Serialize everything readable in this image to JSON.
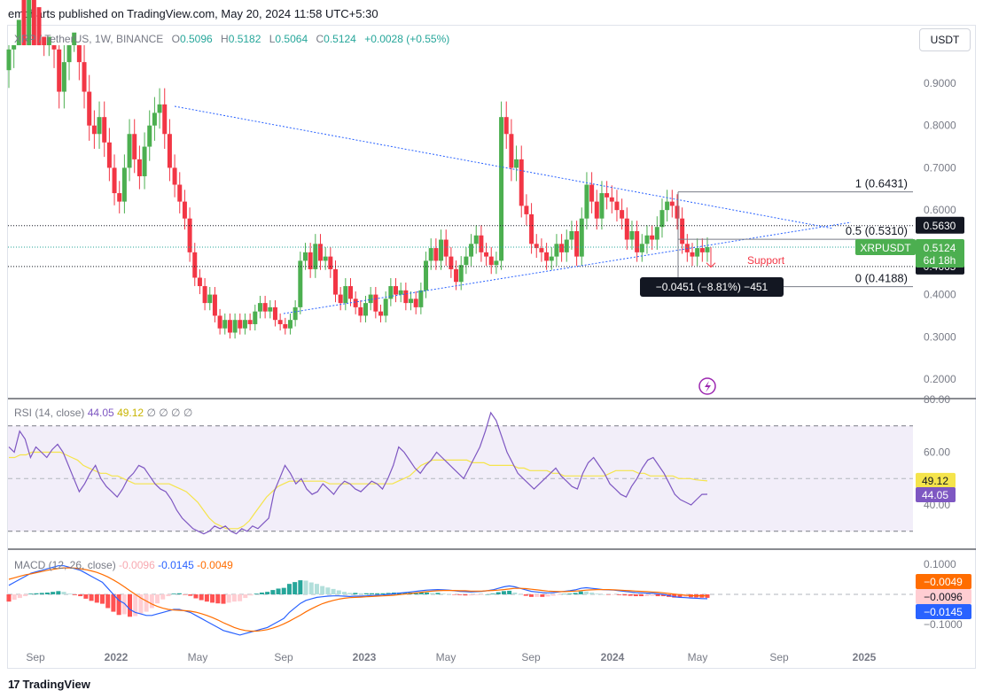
{
  "header": {
    "published": "emcharts published on TradingView.com, May 20, 2024 11:58 UTC+5:30"
  },
  "legend": {
    "symbol": "XRP / TetherUS, 1W, BINANCE",
    "open_label": "O",
    "open": "0.5096",
    "high_label": "H",
    "high": "0.5182",
    "low_label": "L",
    "low": "0.5064",
    "close_label": "C",
    "close": "0.5124",
    "change": "+0.0028 (+0.55%)"
  },
  "currency_button": "USDT",
  "footer": {
    "logo_text": "TradingView",
    "logo_mark": "17"
  },
  "colors": {
    "up": "#26a69a",
    "up_bright": "#4caf50",
    "down": "#f23645",
    "rsi": "#7e57c2",
    "rsi_ma": "#f5e44b",
    "macd": "#2962ff",
    "signal": "#ff6d00",
    "trend": "#2962ff",
    "fib": "#787b86"
  },
  "chart_data": [
    {
      "type": "candlestick",
      "title": "XRP / TetherUS, 1W, BINANCE",
      "ylim": [
        0.18,
        1.0
      ],
      "yticks": [
        "0.9000",
        "0.8000",
        "0.7000",
        "0.6000",
        "0.5000",
        "0.4000",
        "0.3000",
        "0.2000"
      ],
      "xticks": [
        "Sep",
        "2022",
        "May",
        "Sep",
        "2023",
        "May",
        "Sep",
        "2024",
        "May",
        "Sep",
        "2025"
      ],
      "close_series": [
        0.98,
        1.05,
        1.15,
        1.1,
        1.2,
        1.12,
        1.08,
        1.01,
        1.05,
        0.98,
        0.88,
        0.95,
        1.02,
        1.05,
        0.95,
        0.88,
        0.8,
        0.78,
        0.82,
        0.76,
        0.7,
        0.64,
        0.62,
        0.7,
        0.78,
        0.72,
        0.68,
        0.75,
        0.8,
        0.83,
        0.85,
        0.78,
        0.7,
        0.66,
        0.62,
        0.58,
        0.5,
        0.44,
        0.42,
        0.38,
        0.4,
        0.35,
        0.32,
        0.34,
        0.31,
        0.34,
        0.32,
        0.34,
        0.33,
        0.36,
        0.38,
        0.36,
        0.37,
        0.34,
        0.33,
        0.32,
        0.34,
        0.37,
        0.48,
        0.5,
        0.46,
        0.52,
        0.48,
        0.49,
        0.46,
        0.4,
        0.38,
        0.42,
        0.39,
        0.37,
        0.35,
        0.38,
        0.4,
        0.36,
        0.35,
        0.39,
        0.42,
        0.4,
        0.41,
        0.38,
        0.39,
        0.37,
        0.41,
        0.48,
        0.51,
        0.48,
        0.53,
        0.49,
        0.46,
        0.43,
        0.47,
        0.49,
        0.52,
        0.54,
        0.5,
        0.49,
        0.47,
        0.48,
        0.82,
        0.78,
        0.7,
        0.72,
        0.61,
        0.59,
        0.52,
        0.51,
        0.5,
        0.48,
        0.49,
        0.52,
        0.5,
        0.53,
        0.55,
        0.49,
        0.58,
        0.66,
        0.62,
        0.58,
        0.64,
        0.63,
        0.62,
        0.6,
        0.58,
        0.53,
        0.55,
        0.5,
        0.52,
        0.54,
        0.53,
        0.56,
        0.6,
        0.62,
        0.61,
        0.58,
        0.52,
        0.5,
        0.49,
        0.51,
        0.5,
        0.5124
      ],
      "price_range": {
        "high": "1 (0.6431)",
        "mid": "0.5 (0.5310)",
        "low": "0 (0.4188)"
      },
      "levels": {
        "resistance": "0.5630",
        "support": "0.4665"
      },
      "last_price_label": {
        "symbol": "XRPUSDT",
        "price": "0.5124",
        "countdown": "6d 18h"
      },
      "measure_label": "−0.0451 (−8.81%) −451",
      "annotation": "Support"
    },
    {
      "type": "line",
      "title": "RSI (14, close)",
      "series": [
        {
          "name": "RSI",
          "last": "44.05",
          "values": [
            62,
            60,
            68,
            65,
            58,
            62,
            60,
            58,
            61,
            63,
            60,
            55,
            50,
            45,
            48,
            52,
            55,
            50,
            47,
            45,
            43,
            46,
            50,
            52,
            55,
            54,
            51,
            48,
            46,
            45,
            42,
            38,
            35,
            33,
            31,
            30,
            29,
            30,
            32,
            31,
            32,
            30,
            29,
            31,
            30,
            32,
            31,
            33,
            35,
            45,
            50,
            55,
            52,
            48,
            50,
            46,
            44,
            45,
            48,
            46,
            44,
            47,
            49,
            48,
            46,
            45,
            47,
            49,
            48,
            46,
            50,
            55,
            62,
            60,
            57,
            54,
            52,
            55,
            57,
            60,
            58,
            56,
            54,
            52,
            50,
            54,
            58,
            62,
            68,
            75,
            72,
            66,
            60,
            56,
            52,
            50,
            48,
            46,
            48,
            50,
            52,
            54,
            51,
            49,
            47,
            46,
            52,
            56,
            58,
            55,
            52,
            48,
            46,
            44,
            43,
            47,
            50,
            54,
            57,
            58,
            55,
            52,
            48,
            44,
            42,
            41,
            40,
            42,
            44,
            44.05
          ]
        },
        {
          "name": "RSI-based MA",
          "last": "49.12",
          "values": [
            58,
            58,
            59,
            59,
            60,
            60,
            60,
            60,
            60,
            60,
            59,
            58,
            57,
            55,
            54,
            53,
            52,
            52,
            51,
            51,
            50,
            49,
            48,
            48,
            48,
            48,
            48,
            48,
            48,
            47,
            46,
            45,
            43,
            41,
            38,
            35,
            33,
            32,
            31,
            31,
            31,
            32,
            34,
            37,
            40,
            43,
            45,
            47,
            48,
            49,
            49,
            49,
            49,
            49,
            49,
            49,
            48,
            48,
            48,
            48,
            48,
            48,
            48,
            48,
            48,
            48,
            48,
            48,
            49,
            50,
            51,
            53,
            55,
            56,
            57,
            57,
            57,
            57,
            57,
            57,
            57,
            56,
            56,
            56,
            55,
            55,
            55,
            55,
            55,
            54,
            54,
            53,
            53,
            53,
            53,
            52,
            52,
            51,
            51,
            51,
            51,
            51,
            51,
            51,
            51,
            52,
            53,
            53,
            53,
            53,
            52,
            52,
            51,
            51,
            51,
            51,
            51,
            50,
            50,
            50,
            49.5,
            49.3,
            49.12
          ]
        }
      ],
      "yticks": [
        "80.00",
        "60.00",
        "40.00"
      ],
      "value_labels": {
        "ma": "49.12",
        "rsi": "44.05"
      },
      "legend_extra": "∅ ∅ ∅ ∅"
    },
    {
      "type": "bar",
      "title": "MACD (12, 26, close)",
      "series": [
        {
          "name": "Histogram",
          "last": "-0.0096"
        },
        {
          "name": "MACD",
          "last": "-0.0145"
        },
        {
          "name": "Signal",
          "last": "-0.0049"
        }
      ],
      "macd_values": [
        0.03,
        0.04,
        0.05,
        0.06,
        0.07,
        0.075,
        0.08,
        0.085,
        0.09,
        0.095,
        0.095,
        0.09,
        0.085,
        0.08,
        0.07,
        0.06,
        0.05,
        0.04,
        0.02,
        0.0,
        -0.02,
        -0.03,
        -0.05,
        -0.06,
        -0.065,
        -0.07,
        -0.07,
        -0.065,
        -0.06,
        -0.055,
        -0.05,
        -0.05,
        -0.055,
        -0.06,
        -0.07,
        -0.08,
        -0.09,
        -0.1,
        -0.11,
        -0.12,
        -0.125,
        -0.13,
        -0.135,
        -0.13,
        -0.125,
        -0.12,
        -0.115,
        -0.11,
        -0.1,
        -0.09,
        -0.08,
        -0.06,
        -0.045,
        -0.03,
        -0.02,
        -0.015,
        -0.01,
        -0.008,
        -0.006,
        -0.005,
        -0.005,
        -0.006,
        -0.007,
        -0.006,
        -0.006,
        -0.005,
        -0.004,
        -0.003,
        -0.002,
        0.0,
        0.002,
        0.004,
        0.006,
        0.008,
        0.01,
        0.012,
        0.014,
        0.015,
        0.016,
        0.015,
        0.014,
        0.012,
        0.01,
        0.009,
        0.008,
        0.009,
        0.01,
        0.012,
        0.015,
        0.02,
        0.025,
        0.028,
        0.025,
        0.02,
        0.015,
        0.01,
        0.008,
        0.006,
        0.005,
        0.006,
        0.008,
        0.01,
        0.012,
        0.015,
        0.02,
        0.022,
        0.02,
        0.018,
        0.016,
        0.015,
        0.014,
        0.012,
        0.01,
        0.008,
        0.006,
        0.005,
        0.004,
        0.004,
        0.002,
        0.0,
        -0.004,
        -0.008,
        -0.01,
        -0.011,
        -0.012,
        -0.013,
        -0.014,
        -0.0145
      ],
      "signal_values": [
        0.05,
        0.055,
        0.06,
        0.065,
        0.068,
        0.072,
        0.076,
        0.08,
        0.083,
        0.086,
        0.088,
        0.088,
        0.087,
        0.085,
        0.082,
        0.078,
        0.073,
        0.066,
        0.058,
        0.048,
        0.037,
        0.025,
        0.012,
        0.0,
        -0.012,
        -0.022,
        -0.032,
        -0.04,
        -0.046,
        -0.05,
        -0.052,
        -0.053,
        -0.054,
        -0.056,
        -0.059,
        -0.064,
        -0.07,
        -0.077,
        -0.085,
        -0.094,
        -0.102,
        -0.11,
        -0.116,
        -0.12,
        -0.122,
        -0.122,
        -0.12,
        -0.117,
        -0.112,
        -0.106,
        -0.098,
        -0.089,
        -0.079,
        -0.069,
        -0.058,
        -0.048,
        -0.039,
        -0.031,
        -0.025,
        -0.02,
        -0.016,
        -0.013,
        -0.011,
        -0.01,
        -0.009,
        -0.008,
        -0.007,
        -0.006,
        -0.005,
        -0.004,
        -0.003,
        -0.001,
        0.001,
        0.003,
        0.005,
        0.007,
        0.009,
        0.011,
        0.012,
        0.013,
        0.013,
        0.013,
        0.012,
        0.012,
        0.011,
        0.011,
        0.011,
        0.012,
        0.013,
        0.014,
        0.016,
        0.018,
        0.02,
        0.02,
        0.019,
        0.017,
        0.015,
        0.013,
        0.011,
        0.01,
        0.009,
        0.009,
        0.01,
        0.011,
        0.012,
        0.014,
        0.015,
        0.016,
        0.016,
        0.016,
        0.015,
        0.014,
        0.013,
        0.012,
        0.011,
        0.01,
        0.009,
        0.008,
        0.007,
        0.005,
        0.003,
        0.001,
        -0.001,
        -0.003,
        -0.004,
        -0.0045,
        -0.0048,
        -0.0049
      ],
      "yticks": [
        "0.1000",
        "-0.1000"
      ],
      "value_labels": {
        "signal": "−0.0049",
        "hist": "−0.0096",
        "macd": "−0.0145"
      }
    }
  ]
}
